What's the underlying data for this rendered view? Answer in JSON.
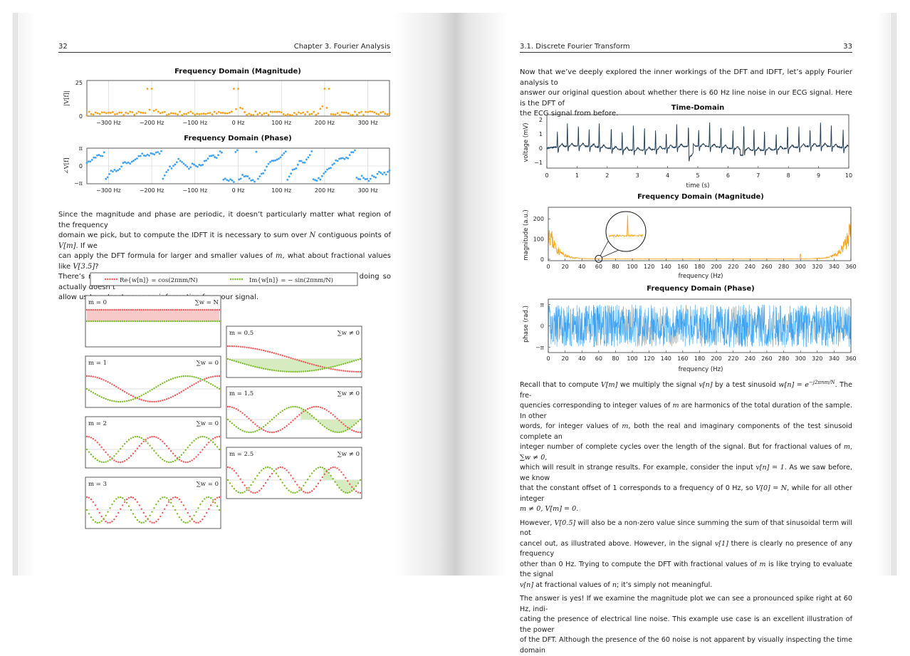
{
  "left_page": {
    "header": {
      "page_number": "32",
      "chapter": "Chapter 3.  Fourier Analysis"
    },
    "mag_chart": {
      "title": "Frequency Domain (Magnitude)",
      "ylabel": "|V[f]|",
      "yticks": [
        "25",
        "0"
      ],
      "xticks": [
        "−300 Hz",
        "−200 Hz",
        "−100 Hz",
        "0 Hz",
        "100 Hz",
        "200 Hz",
        "300 Hz"
      ]
    },
    "phase_chart": {
      "title": "Frequency Domain (Phase)",
      "ylabel": "∠V[f]",
      "yticks": [
        "π",
        "0",
        "−π"
      ],
      "xticks": [
        "−300 Hz",
        "−200 Hz",
        "−100 Hz",
        "0 Hz",
        "100 Hz",
        "200 Hz",
        "300 Hz"
      ]
    },
    "paragraph": {
      "l1": "Since the magnitude and phase are periodic, it doesn’t particularly matter what region of the frequency",
      "l2a": "domain we pick, but to compute the IDFT it is necessary to sum over ",
      "l2_N": "N",
      "l2b": " contiguous points of ",
      "l2_Vm": "V[m]",
      "l2c": ". If we",
      "l3a": "can apply the DFT formula for larger and smaller values of ",
      "l3_m": "m",
      "l3b": ", what about fractional values like ",
      "l3_V35": "V[3.5]",
      "l3c": "?",
      "l4": "There’s nothing about the DFT formula that would stop us from doing this, but doing so actually doesn’t",
      "l5": "allow us to extract any new information from our signal."
    },
    "legend": {
      "re": "Re{w[n]} = cos(2πnm/N)",
      "im": "Im{w[n]} = − sin(2πnm/N)"
    },
    "panels": [
      {
        "m_label": "m = 0",
        "sum_label": "∑w = N"
      },
      {
        "m_label": "m = 1",
        "sum_label": "∑w = 0"
      },
      {
        "m_label": "m = 2",
        "sum_label": "∑w = 0"
      },
      {
        "m_label": "m = 3",
        "sum_label": "∑w = 0"
      },
      {
        "m_label": "m = 0.5",
        "sum_label": "∑w ≠ 0"
      },
      {
        "m_label": "m = 1.5",
        "sum_label": "∑w ≠ 0"
      },
      {
        "m_label": "m = 2.5",
        "sum_label": "∑w ≠ 0"
      }
    ]
  },
  "right_page": {
    "header": {
      "section": "3.1.  Discrete Fourier Transform",
      "page_number": "33"
    },
    "intro": {
      "l1": "Now that we’ve deeply explored the inner workings of the DFT and IDFT, let’s apply Fourier analysis to",
      "l2": "answer our original question about whether there is 60 Hz line noise in our ECG signal. Here is the DFT of",
      "l3": "the ECG signal from before."
    },
    "time_chart": {
      "title": "Time-Domain",
      "ylabel": "voltage (mV)",
      "xlabel": "time (s)",
      "yticks": [
        "2",
        "1",
        "0",
        "−1"
      ],
      "xticks": [
        "0",
        "1",
        "2",
        "3",
        "4",
        "5",
        "6",
        "7",
        "8",
        "9",
        "10"
      ]
    },
    "freq_mag_chart": {
      "title": "Frequency Domain (Magnitude)",
      "ylabel": "magnitude (a.u.)",
      "xlabel": "frequency (Hz)",
      "yticks": [
        "200",
        "100",
        "0"
      ],
      "xticks": [
        "0",
        "20",
        "40",
        "60",
        "80",
        "100",
        "120",
        "140",
        "160",
        "180",
        "200",
        "220",
        "240",
        "260",
        "280",
        "300",
        "320",
        "340",
        "360"
      ]
    },
    "freq_phase_chart": {
      "title": "Frequency Domain (Phase)",
      "ylabel": "phase (rad.)",
      "xlabel": "frequency (Hz)",
      "yticks": [
        "π",
        "0",
        "−π"
      ],
      "xticks": [
        "0",
        "20",
        "40",
        "60",
        "80",
        "100",
        "120",
        "140",
        "160",
        "180",
        "200",
        "220",
        "240",
        "260",
        "280",
        "300",
        "320",
        "340",
        "360"
      ]
    },
    "body": {
      "p1_l1a": "Recall that to compute ",
      "p1_l1_Vm": "V[m]",
      "p1_l1b": " we multiply the signal ",
      "p1_l1_vn": "v[n]",
      "p1_l1c": " by a test sinusoid ",
      "p1_l1_wn": "w[n] = e",
      "p1_l1_exp": "−j2πnm/N",
      "p1_l1d": ". The fre-",
      "p1_l2a": "quencies corresponding to integer values of ",
      "p1_l2_m": "m",
      "p1_l2b": " are harmonics of the total duration of the sample. In other",
      "p1_l3a": "words, for integer values of ",
      "p1_l3_m": "m",
      "p1_l3b": ", both the real and imaginary components of the test sinusoid complete an",
      "p1_l4a": "integer number of complete cycles over the length of the signal. But for fractional values of ",
      "p1_l4_m": "m, ∑w ≠ 0,",
      "p1_l5a": "which will result in strange results. For example, consider the input ",
      "p1_l5_v": "v[n] = 1",
      "p1_l5b": ". As we saw before, we know",
      "p1_l6a": "that the constant offset of 1 corresponds to a frequency of 0 Hz, so ",
      "p1_l6_V0": "V[0] = N",
      "p1_l6b": ", while for all other integer",
      "p1_l7": "m ≠ 0, V[m] = 0.",
      "p2_l1a": "However, ",
      "p2_l1_V05": "V[0.5]",
      "p2_l1b": " will also be a non-zero value since summing the sum of that sinusoidal term will not",
      "p2_l2a": "cancel out, as illustrated above. However, in the signal ",
      "p2_l2_v1": "v[1]",
      "p2_l2b": " there is clearly no presence of any frequency",
      "p2_l3a": "other than 0 Hz. Trying to compute the DFT with fractional values of ",
      "p2_l3_m": "m",
      "p2_l3b": " is like trying to evaluate the signal",
      "p2_l4_vn": "v[n]",
      "p2_l4a": " at fractional values of ",
      "p2_l4_n": "n",
      "p2_l4b": "; it’s simply not meaningful.",
      "p3_l1": "The answer is yes! If we examine the magnitude plot we can see a pronounced spike right at 60 Hz, indi-",
      "p3_l2": "cating the presence of electrical line noise. This example use case is an excellent illustration of the power",
      "p3_l3": "of the DFT. Although the presence of the 60 noise is not apparent by visually inspecting the time domain"
    }
  },
  "colors": {
    "orange": "#f5a31a",
    "blue": "#3fa2ee",
    "red": "#ee5a5a",
    "green": "#7dbb2d",
    "navy": "#1d3a52",
    "red_fill": "#f7c9c9",
    "green_fill": "#d6ecc0"
  }
}
